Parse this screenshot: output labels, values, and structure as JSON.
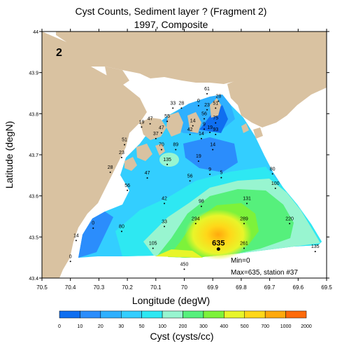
{
  "title_line1": "Cyst Counts, Sediment layer ?  (Fragment 2)",
  "title_line2": "1997, Composite",
  "panel_label": "2",
  "x_axis_label": "Longitude (degW)",
  "y_axis_label": "Latitude (degN)",
  "colorbar_label": "Cyst (cysts/cc)",
  "min_text": "Min=0",
  "max_text": "Max=635, station #37",
  "highlight_value": "635",
  "colors": {
    "land": "#d9c2a1",
    "water_white": "#ffffff",
    "frame": "#000000"
  },
  "colorbar": {
    "ticks": [
      "0",
      "10",
      "20",
      "30",
      "50",
      "100",
      "200",
      "300",
      "400",
      "500",
      "700",
      "1000",
      "2000"
    ],
    "colors": [
      "#0f6ef0",
      "#2b8dfc",
      "#2fb0ff",
      "#33ceff",
      "#2ee8f2",
      "#98f5d0",
      "#56f07c",
      "#7df23a",
      "#e8f52a",
      "#ffd719",
      "#ffa90d",
      "#ff6a0a"
    ]
  },
  "map": {
    "x_ticks": [
      "70.5",
      "70.4",
      "70.3",
      "70.2",
      "70.1",
      "70",
      "69.9",
      "69.8",
      "69.7",
      "69.6",
      "69.5"
    ],
    "y_ticks": [
      "44",
      "43.9",
      "43.8",
      "43.7",
      "43.6",
      "43.5",
      "43.4"
    ],
    "stations": [
      {
        "lon": 69.92,
        "lat": 43.857,
        "label": "61"
      },
      {
        "lon": 69.88,
        "lat": 43.839,
        "label": "28"
      },
      {
        "lon": 69.95,
        "lat": 43.828,
        "label": "0"
      },
      {
        "lon": 69.89,
        "lat": 43.822,
        "label": "51"
      },
      {
        "lon": 69.92,
        "lat": 43.818,
        "label": "23"
      },
      {
        "lon": 70.04,
        "lat": 43.822,
        "label": "33"
      },
      {
        "lon": 70.01,
        "lat": 43.822,
        "label": "28"
      },
      {
        "lon": 69.93,
        "lat": 43.796,
        "label": "56"
      },
      {
        "lon": 69.89,
        "lat": 43.786,
        "label": "75"
      },
      {
        "lon": 70.06,
        "lat": 43.79,
        "label": "55"
      },
      {
        "lon": 70.12,
        "lat": 43.784,
        "label": "47"
      },
      {
        "lon": 70.15,
        "lat": 43.776,
        "label": "19"
      },
      {
        "lon": 69.97,
        "lat": 43.779,
        "label": "14"
      },
      {
        "lon": 69.93,
        "lat": 43.771,
        "label": "9"
      },
      {
        "lon": 69.91,
        "lat": 43.763,
        "label": "19"
      },
      {
        "lon": 70.08,
        "lat": 43.762,
        "label": "47"
      },
      {
        "lon": 69.98,
        "lat": 43.758,
        "label": "42"
      },
      {
        "lon": 69.89,
        "lat": 43.758,
        "label": "93"
      },
      {
        "lon": 70.1,
        "lat": 43.748,
        "label": "37"
      },
      {
        "lon": 69.94,
        "lat": 43.748,
        "label": "14"
      },
      {
        "lon": 70.21,
        "lat": 43.733,
        "label": "51"
      },
      {
        "lon": 70.08,
        "lat": 43.721,
        "label": "70"
      },
      {
        "lon": 70.03,
        "lat": 43.721,
        "label": "89"
      },
      {
        "lon": 69.9,
        "lat": 43.721,
        "label": "14"
      },
      {
        "lon": 70.22,
        "lat": 43.702,
        "label": "23"
      },
      {
        "lon": 69.95,
        "lat": 43.693,
        "label": "19"
      },
      {
        "lon": 70.06,
        "lat": 43.685,
        "label": "135"
      },
      {
        "lon": 70.26,
        "lat": 43.666,
        "label": "28"
      },
      {
        "lon": 69.91,
        "lat": 43.661,
        "label": "9"
      },
      {
        "lon": 69.87,
        "lat": 43.653,
        "label": "5"
      },
      {
        "lon": 70.13,
        "lat": 43.652,
        "label": "47"
      },
      {
        "lon": 69.69,
        "lat": 43.662,
        "label": "80"
      },
      {
        "lon": 69.98,
        "lat": 43.645,
        "label": "56"
      },
      {
        "lon": 69.68,
        "lat": 43.627,
        "label": "100"
      },
      {
        "lon": 70.2,
        "lat": 43.622,
        "label": "56"
      },
      {
        "lon": 70.07,
        "lat": 43.59,
        "label": "42"
      },
      {
        "lon": 69.94,
        "lat": 43.583,
        "label": "98"
      },
      {
        "lon": 69.78,
        "lat": 43.59,
        "label": "131"
      },
      {
        "lon": 69.96,
        "lat": 43.541,
        "label": "294"
      },
      {
        "lon": 69.79,
        "lat": 43.541,
        "label": "289"
      },
      {
        "lon": 69.63,
        "lat": 43.541,
        "label": "220"
      },
      {
        "lon": 70.32,
        "lat": 43.53,
        "label": "0"
      },
      {
        "lon": 70.07,
        "lat": 43.534,
        "label": "33"
      },
      {
        "lon": 70.22,
        "lat": 43.522,
        "label": "80"
      },
      {
        "lon": 70.38,
        "lat": 43.5,
        "label": "14"
      },
      {
        "lon": 70.11,
        "lat": 43.481,
        "label": "105"
      },
      {
        "lon": 69.88,
        "lat": 43.479,
        "label": "635",
        "bold": true
      },
      {
        "lon": 69.79,
        "lat": 43.481,
        "label": "261"
      },
      {
        "lon": 69.54,
        "lat": 43.473,
        "label": "135"
      },
      {
        "lon": 70.4,
        "lat": 43.449,
        "label": "0"
      },
      {
        "lon": 70.0,
        "lat": 43.43,
        "label": "450"
      }
    ]
  }
}
